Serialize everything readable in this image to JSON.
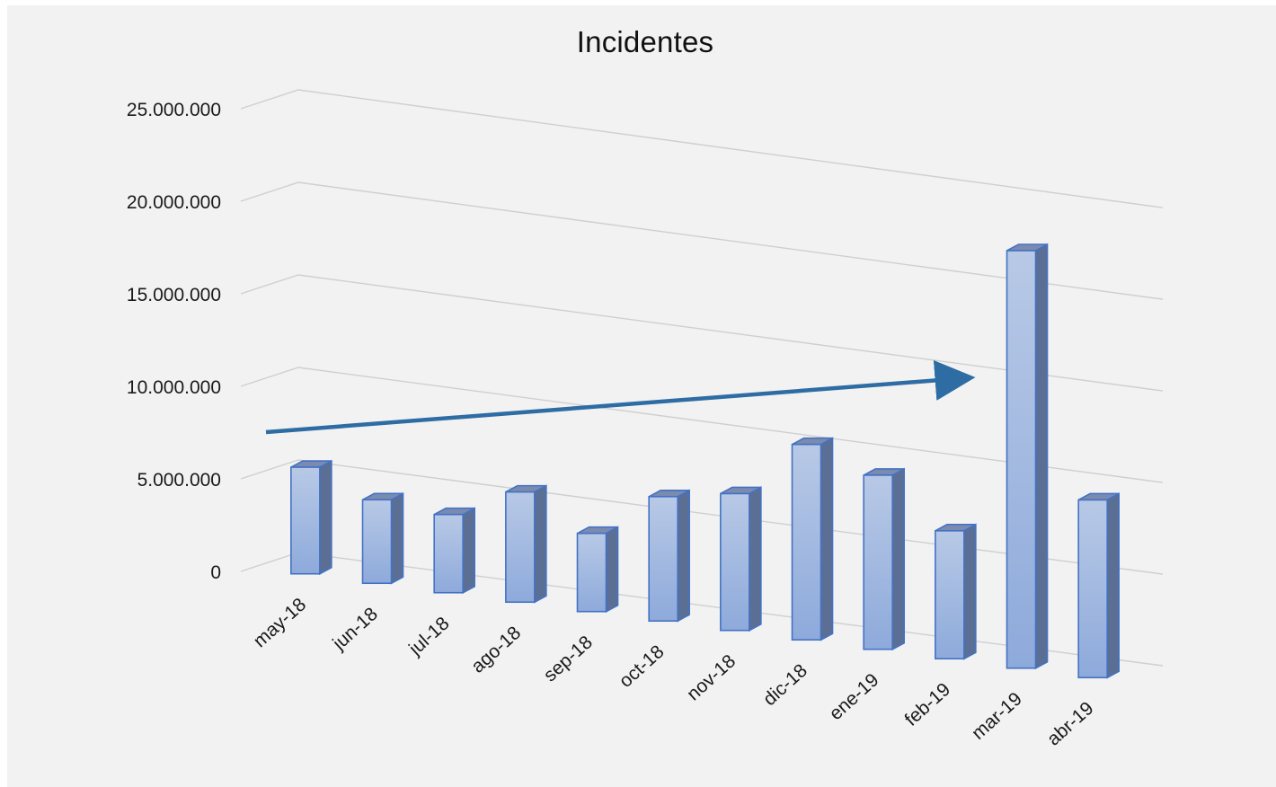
{
  "chart_data": {
    "type": "bar",
    "title": "Incidentes",
    "xlabel": "",
    "ylabel": "",
    "ylim": [
      0,
      25000000
    ],
    "yticks": [
      {
        "value": 0,
        "label": "0"
      },
      {
        "value": 5000000,
        "label": "5.000.000"
      },
      {
        "value": 10000000,
        "label": "10.000.000"
      },
      {
        "value": 15000000,
        "label": "15.000.000"
      },
      {
        "value": 20000000,
        "label": "20.000.000"
      },
      {
        "value": 25000000,
        "label": "25.000.000"
      }
    ],
    "categories": [
      "may-18",
      "jun-18",
      "jul-18",
      "ago-18",
      "sep-18",
      "oct-18",
      "nov-18",
      "dic-18",
      "ene-19",
      "feb-19",
      "mar-19",
      "abr-19"
    ],
    "values": [
      6000000,
      4700000,
      4400000,
      6200000,
      4400000,
      7000000,
      7700000,
      11000000,
      9800000,
      7200000,
      23500000,
      10000000
    ],
    "grid": true,
    "legend": "none",
    "render": "3d-column",
    "annotation": {
      "type": "trend-arrow",
      "direction": "increasing",
      "color": "#2e6ca4"
    },
    "colors": {
      "bar_front_top": "#b8c9e6",
      "bar_front_bottom": "#8eaadb",
      "bar_side": "#5b6f95",
      "bar_top": "#7b8bb0",
      "bar_edge": "#4472c4",
      "arrow": "#2e6ca4"
    }
  }
}
